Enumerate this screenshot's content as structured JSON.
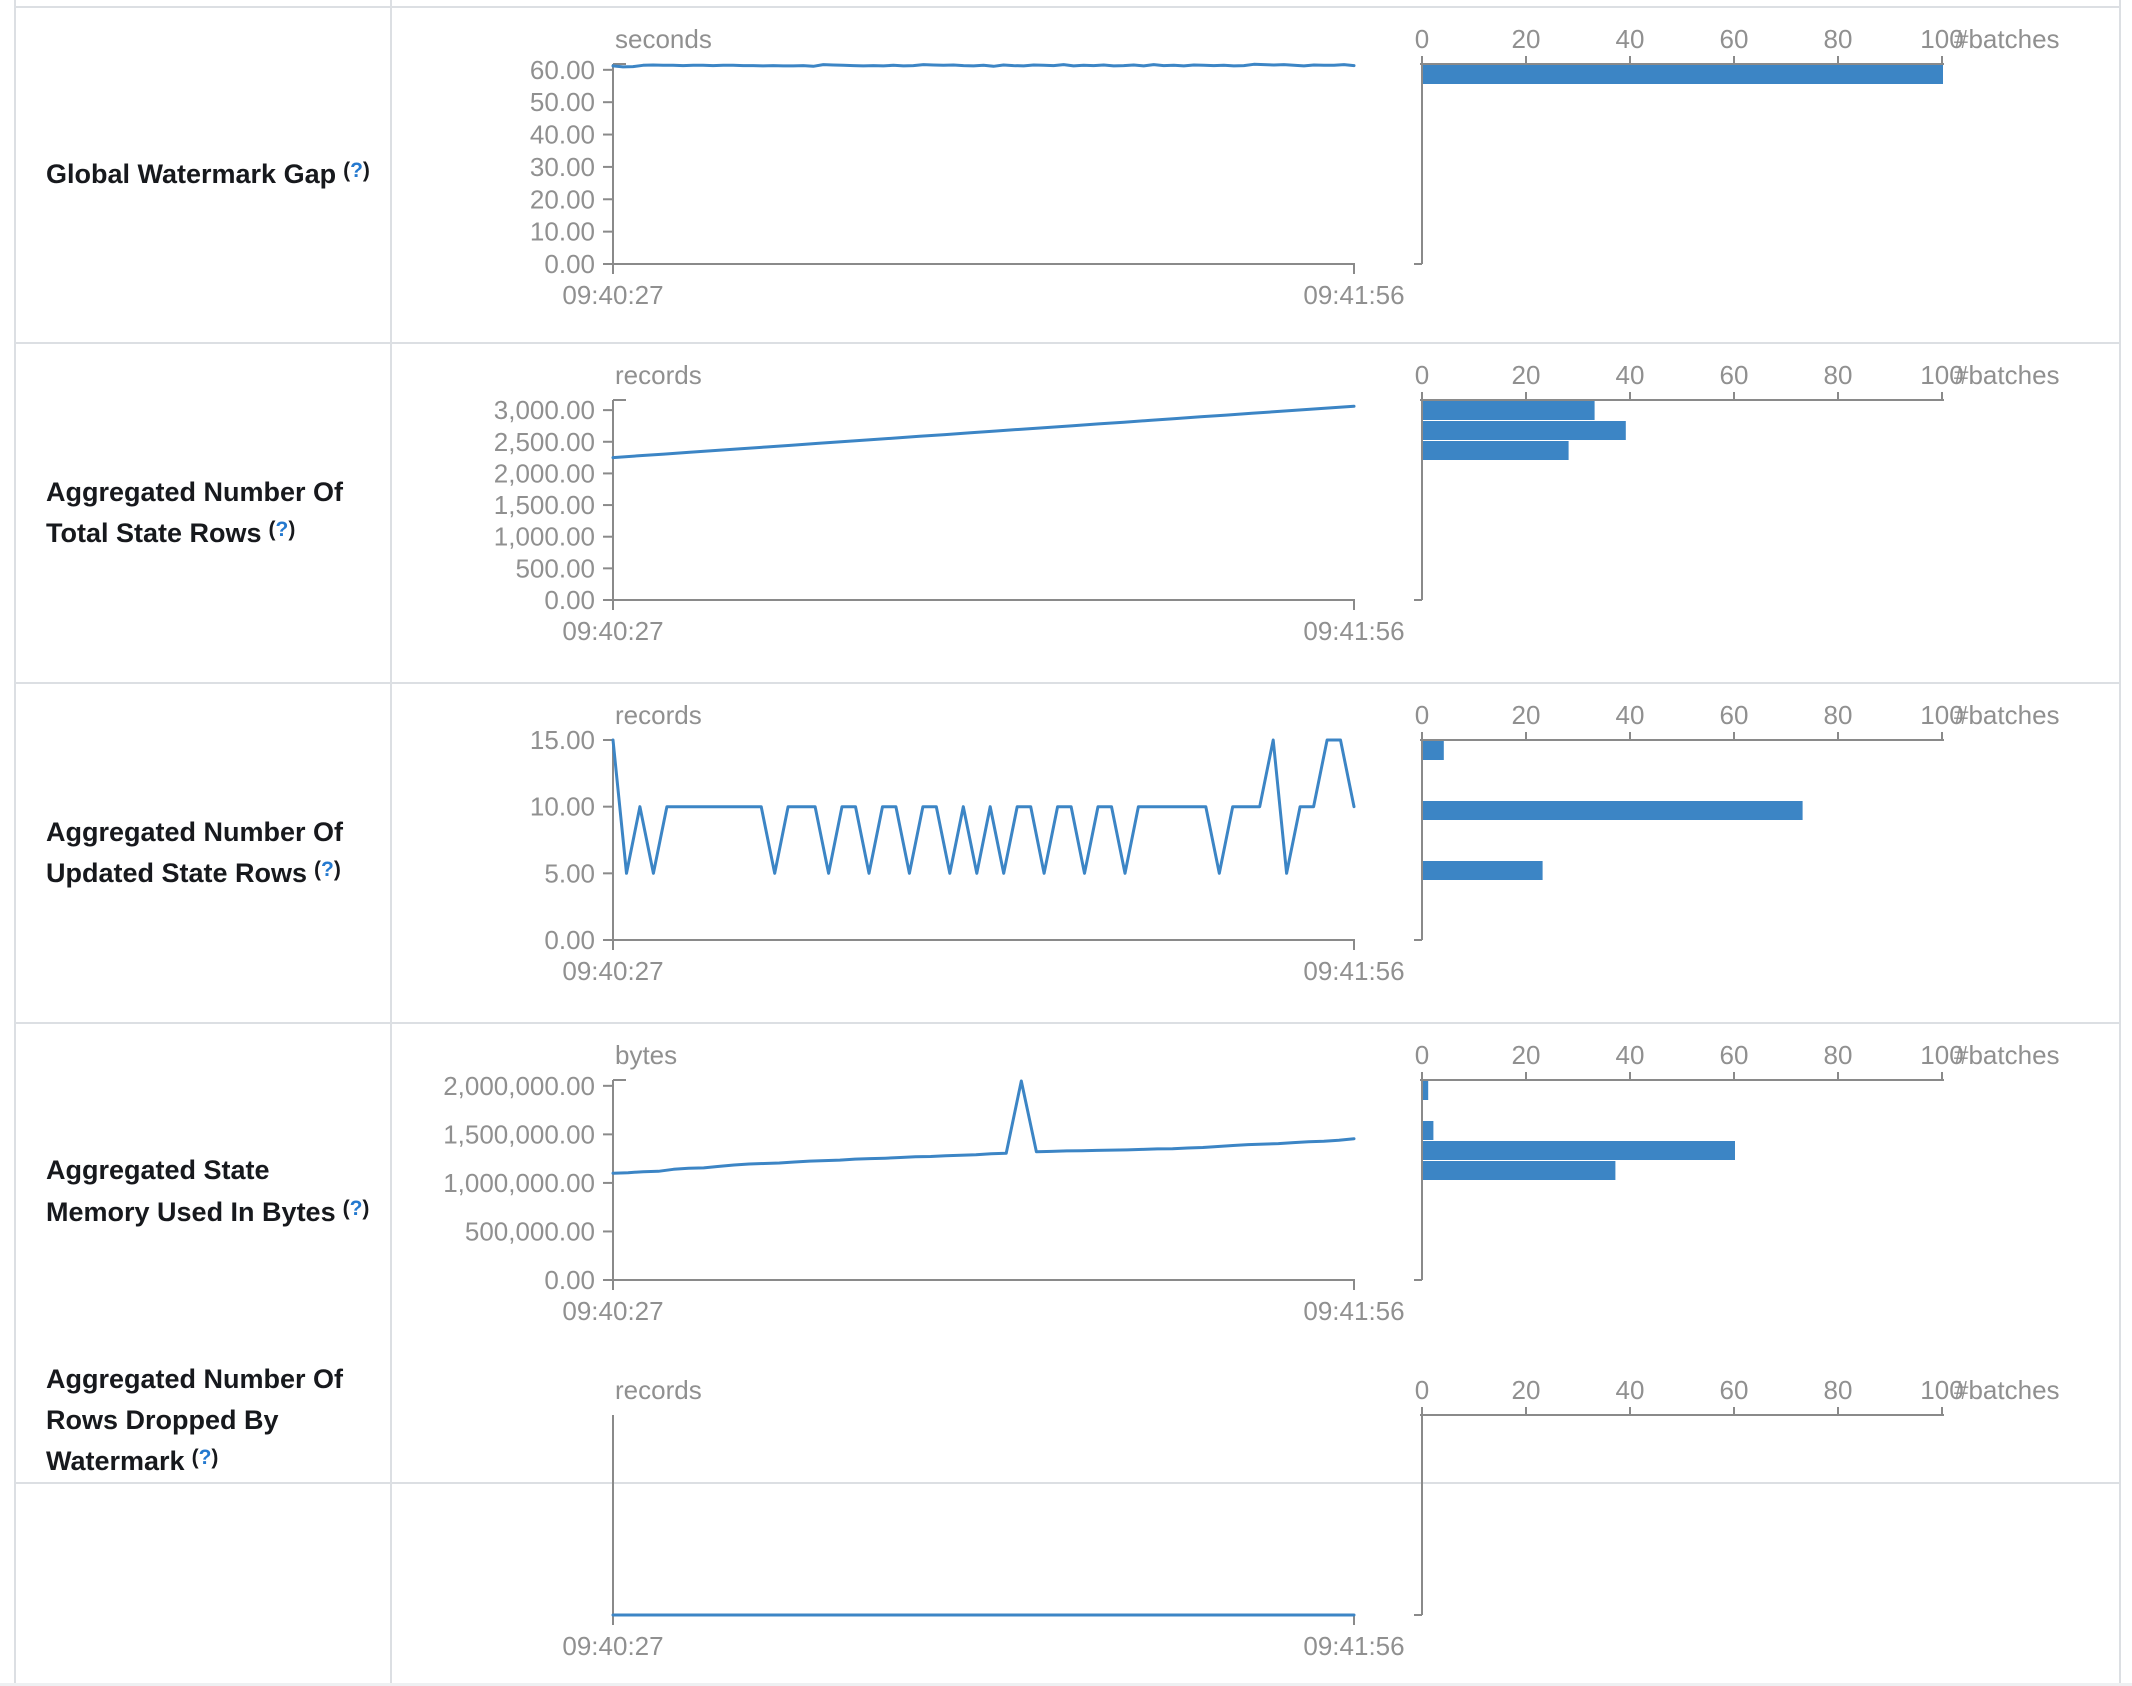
{
  "colors": {
    "accent_blue": "#3c85c5",
    "axis_gray": "#8a8a8a",
    "tick_text": "#909090",
    "label_text": "#17191d",
    "help_blue": "#2479cf",
    "border": "#dcdfe3"
  },
  "help": {
    "open": "(",
    "q": "?",
    "close": ")"
  },
  "rows": [
    {
      "label": "Global Watermark Gap"
    },
    {
      "label": "Aggregated Number Of Total State Rows"
    },
    {
      "label": "Aggregated Number Of Updated State Rows"
    },
    {
      "label": "Aggregated State Memory Used In Bytes"
    },
    {
      "label": "Aggregated Number Of Rows Dropped By Watermark"
    }
  ],
  "chart_data": [
    {
      "row": "Global Watermark Gap",
      "timeline": {
        "type": "line",
        "unit": "seconds",
        "x_tick_labels": [
          "09:40:27",
          "09:41:56"
        ],
        "y_ticks": [
          0,
          10,
          20,
          30,
          40,
          50,
          60
        ],
        "y_tick_labels": [
          "0.00",
          "10.00",
          "20.00",
          "30.00",
          "40.00",
          "50.00",
          "60.00"
        ],
        "y_max": 61.8,
        "top_cap": true,
        "values": [
          61.2,
          60.9,
          61.0,
          61.4,
          61.5,
          61.4,
          61.4,
          61.3,
          61.4,
          61.4,
          61.3,
          61.4,
          61.4,
          61.3,
          61.3,
          61.2,
          61.3,
          61.2,
          61.2,
          61.3,
          61.1,
          61.6,
          61.5,
          61.4,
          61.3,
          61.2,
          61.3,
          61.2,
          61.4,
          61.2,
          61.3,
          61.6,
          61.5,
          61.4,
          61.5,
          61.3,
          61.2,
          61.4,
          61.1,
          61.5,
          61.3,
          61.2,
          61.5,
          61.4,
          61.3,
          61.6,
          61.2,
          61.4,
          61.3,
          61.5,
          61.2,
          61.3,
          61.5,
          61.2,
          61.6,
          61.3,
          61.4,
          61.2,
          61.5,
          61.4,
          61.3,
          61.4,
          61.2,
          61.3,
          61.7,
          61.6,
          61.5,
          61.6,
          61.4,
          61.2,
          61.5,
          61.4,
          61.4,
          61.6,
          61.3
        ]
      },
      "histogram": {
        "type": "bar",
        "x_label": "#batches",
        "x_ticks": [
          0,
          20,
          40,
          60,
          80,
          100
        ],
        "x_tick_labels": [
          "0",
          "20",
          "40",
          "60",
          "80",
          "100"
        ],
        "x_max": 100,
        "bars": [
          {
            "slot": 0,
            "count": 100
          }
        ]
      }
    },
    {
      "row": "Aggregated Number Of Total State Rows",
      "timeline": {
        "type": "line",
        "unit": "records",
        "x_tick_labels": [
          "09:40:27",
          "09:41:56"
        ],
        "y_ticks": [
          0,
          500,
          1000,
          1500,
          2000,
          2500,
          3000
        ],
        "y_tick_labels": [
          "0.00",
          "500.00",
          "1,000.00",
          "1,500.00",
          "2,000.00",
          "2,500.00",
          "3,000.00"
        ],
        "y_max": 3160,
        "top_cap": true,
        "values": [
          2250,
          2278,
          2306,
          2334,
          2362,
          2390,
          2418,
          2446,
          2474,
          2502,
          2530,
          2558,
          2586,
          2614,
          2642,
          2670,
          2698,
          2726,
          2754,
          2782,
          2810,
          2838,
          2866,
          2894,
          2922,
          2950,
          2978,
          3006,
          3034,
          3060
        ]
      },
      "histogram": {
        "type": "bar",
        "x_label": "#batches",
        "x_ticks": [
          0,
          20,
          40,
          60,
          80,
          100
        ],
        "x_tick_labels": [
          "0",
          "20",
          "40",
          "60",
          "80",
          "100"
        ],
        "x_max": 100,
        "bars": [
          {
            "slot": 0,
            "count": 33
          },
          {
            "slot": 1,
            "count": 39
          },
          {
            "slot": 2,
            "count": 28
          }
        ]
      }
    },
    {
      "row": "Aggregated Number Of Updated State Rows",
      "timeline": {
        "type": "line",
        "unit": "records",
        "x_tick_labels": [
          "09:40:27",
          "09:41:56"
        ],
        "y_ticks": [
          0,
          5,
          10,
          15
        ],
        "y_tick_labels": [
          "0.00",
          "5.00",
          "10.00",
          "15.00"
        ],
        "y_max": 15,
        "top_cap": false,
        "values": [
          15,
          5,
          10,
          5,
          10,
          10,
          10,
          10,
          10,
          10,
          10,
          10,
          5,
          10,
          10,
          10,
          5,
          10,
          10,
          5,
          10,
          10,
          5,
          10,
          10,
          5,
          10,
          5,
          10,
          5,
          10,
          10,
          5,
          10,
          10,
          5,
          10,
          10,
          5,
          10,
          10,
          10,
          10,
          10,
          10,
          5,
          10,
          10,
          10,
          15,
          5,
          10,
          10,
          15,
          15,
          10
        ]
      },
      "histogram": {
        "type": "bar",
        "x_label": "#batches",
        "x_ticks": [
          0,
          20,
          40,
          60,
          80,
          100
        ],
        "x_tick_labels": [
          "0",
          "20",
          "40",
          "60",
          "80",
          "100"
        ],
        "x_max": 100,
        "bars": [
          {
            "slot": 0,
            "count": 4
          },
          {
            "slot": 3,
            "count": 73
          },
          {
            "slot": 6,
            "count": 23
          }
        ]
      }
    },
    {
      "row": "Aggregated State Memory Used In Bytes",
      "timeline": {
        "type": "line",
        "unit": "bytes",
        "x_tick_labels": [
          "09:40:27",
          "09:41:56"
        ],
        "y_ticks": [
          0,
          500000,
          1000000,
          1500000,
          2000000
        ],
        "y_tick_labels": [
          "0.00",
          "500,000.00",
          "1,000,000.00",
          "1,500,000.00",
          "2,000,000.00"
        ],
        "y_max": 2060000,
        "top_cap": true,
        "values": [
          1100000,
          1105000,
          1115000,
          1120000,
          1140000,
          1150000,
          1155000,
          1170000,
          1185000,
          1195000,
          1200000,
          1205000,
          1215000,
          1225000,
          1230000,
          1235000,
          1245000,
          1250000,
          1255000,
          1262000,
          1270000,
          1272000,
          1280000,
          1285000,
          1290000,
          1300000,
          1305000,
          2050000,
          1320000,
          1325000,
          1330000,
          1332000,
          1335000,
          1338000,
          1340000,
          1345000,
          1350000,
          1352000,
          1360000,
          1365000,
          1375000,
          1385000,
          1395000,
          1400000,
          1405000,
          1415000,
          1425000,
          1430000,
          1440000,
          1455000
        ]
      },
      "histogram": {
        "type": "bar",
        "x_label": "#batches",
        "x_ticks": [
          0,
          20,
          40,
          60,
          80,
          100
        ],
        "x_tick_labels": [
          "0",
          "20",
          "40",
          "60",
          "80",
          "100"
        ],
        "x_max": 100,
        "bars": [
          {
            "slot": 0,
            "count": 1
          },
          {
            "slot": 2,
            "count": 2
          },
          {
            "slot": 3,
            "count": 60
          },
          {
            "slot": 4,
            "count": 37
          }
        ]
      }
    },
    {
      "row": "Aggregated Number Of Rows Dropped By Watermark",
      "timeline": {
        "type": "line",
        "unit": "records",
        "x_tick_labels": [
          "09:40:27",
          "09:41:56"
        ],
        "y_ticks": [],
        "y_tick_labels": [],
        "y_max": 1,
        "top_cap": false,
        "values": [
          0,
          0
        ]
      },
      "histogram": {
        "type": "bar",
        "x_label": "#batches",
        "x_ticks": [
          0,
          20,
          40,
          60,
          80,
          100
        ],
        "x_tick_labels": [
          "0",
          "20",
          "40",
          "60",
          "80",
          "100"
        ],
        "x_max": 100,
        "bars": []
      }
    }
  ]
}
